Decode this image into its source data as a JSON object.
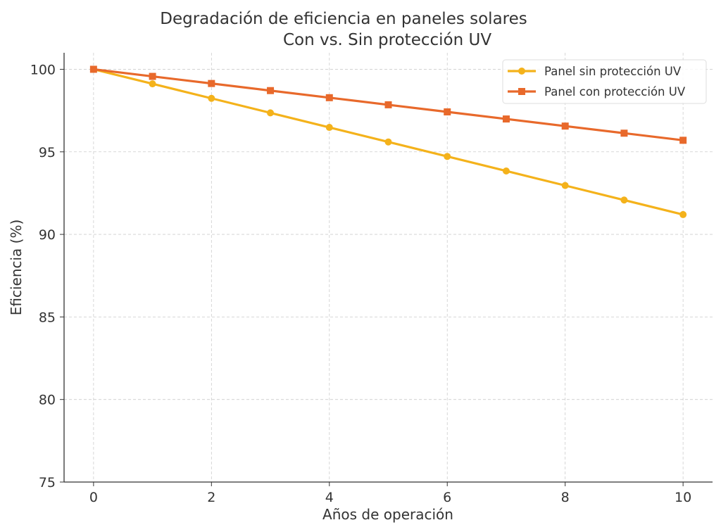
{
  "chart_data": {
    "type": "line",
    "title": "Degradación de eficiencia en paneles solares",
    "subtitle": "Con vs. Sin protección UV",
    "xlabel": "Años de operación",
    "ylabel": "Eficiencia (%)",
    "xlim": [
      -0.5,
      10.5
    ],
    "ylim": [
      75,
      101
    ],
    "xticks": [
      0,
      2,
      4,
      6,
      8,
      10
    ],
    "yticks": [
      75,
      80,
      85,
      90,
      95,
      100
    ],
    "grid": true,
    "legend_position": "top-right",
    "x": [
      0,
      1,
      2,
      3,
      4,
      5,
      6,
      7,
      8,
      9,
      10
    ],
    "series": [
      {
        "name": "Panel sin protección UV",
        "color": "#F4B21B",
        "marker": "circle",
        "values": [
          100,
          99.12,
          98.24,
          97.36,
          96.48,
          95.6,
          94.72,
          93.84,
          92.96,
          92.08,
          91.2
        ]
      },
      {
        "name": "Panel con protección UV",
        "color": "#E8692B",
        "marker": "square",
        "values": [
          100,
          99.57,
          99.14,
          98.71,
          98.28,
          97.85,
          97.42,
          96.99,
          96.56,
          96.13,
          95.7
        ]
      }
    ]
  }
}
